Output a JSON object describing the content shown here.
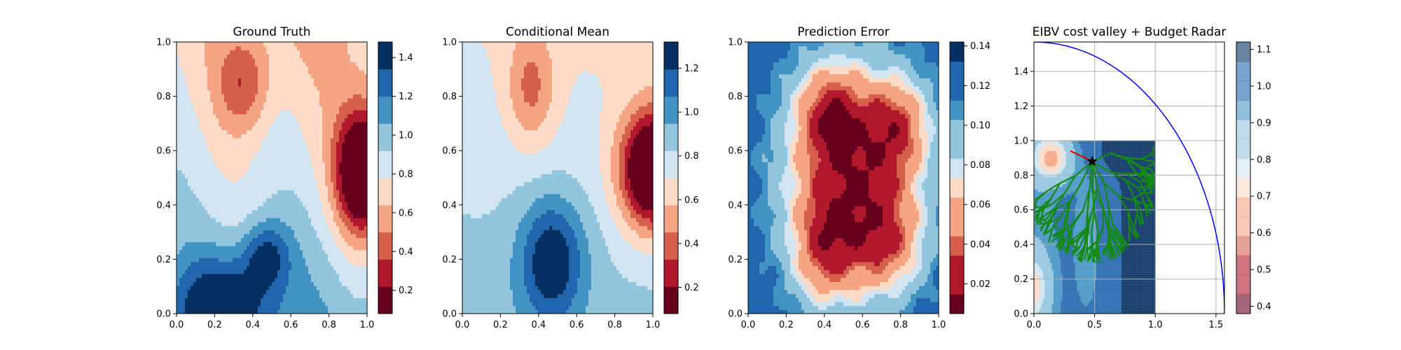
{
  "figure": {
    "panel_titles": [
      "Ground Truth",
      "Conditional Mean",
      "Prediction Error",
      "EIBV cost valley + Budget Radar"
    ]
  },
  "chart_data": [
    {
      "type": "heatmap",
      "title": "Ground Truth",
      "xlabel": "",
      "ylabel": "",
      "xlim": [
        0,
        1
      ],
      "ylim": [
        0,
        1
      ],
      "xticks": [
        "0.0",
        "0.2",
        "0.4",
        "0.6",
        "0.8",
        "1.0"
      ],
      "yticks": [
        "0.0",
        "0.2",
        "0.4",
        "0.6",
        "0.8",
        "1.0"
      ],
      "colormap": "RdBu",
      "colorbar": {
        "min": 0.08,
        "max": 1.48,
        "ticks": [
          "0.2",
          "0.4",
          "0.6",
          "0.8",
          "1.0",
          "1.2",
          "1.4"
        ]
      },
      "features": [
        {
          "kind": "low",
          "x": 0.97,
          "y": 0.52,
          "value": 0.1
        },
        {
          "kind": "high",
          "x": 0.22,
          "y": 0.02,
          "value": 1.45
        },
        {
          "kind": "high",
          "x": 0.45,
          "y": 0.22,
          "value": 1.45
        },
        {
          "kind": "mid-low",
          "x": 0.35,
          "y": 0.88,
          "value": 0.6
        }
      ]
    },
    {
      "type": "heatmap",
      "title": "Conditional Mean",
      "xlabel": "",
      "ylabel": "",
      "xlim": [
        0,
        1
      ],
      "ylim": [
        0,
        1
      ],
      "xticks": [
        "0.0",
        "0.2",
        "0.4",
        "0.6",
        "0.8",
        "1.0"
      ],
      "yticks": [
        "0.0",
        "0.2",
        "0.4",
        "0.6",
        "0.8",
        "1.0"
      ],
      "colormap": "RdBu",
      "colorbar": {
        "min": 0.08,
        "max": 1.32,
        "ticks": [
          "0.2",
          "0.4",
          "0.6",
          "0.8",
          "1.0",
          "1.2"
        ]
      },
      "features": [
        {
          "kind": "low",
          "x": 0.98,
          "y": 0.53,
          "value": 0.1
        },
        {
          "kind": "high",
          "x": 0.47,
          "y": 0.2,
          "value": 1.3
        },
        {
          "kind": "mid-low",
          "x": 0.36,
          "y": 0.83,
          "value": 0.7
        }
      ]
    },
    {
      "type": "heatmap",
      "title": "Prediction Error",
      "xlabel": "",
      "ylabel": "",
      "xlim": [
        0,
        1
      ],
      "ylim": [
        0,
        1
      ],
      "xticks": [
        "0.0",
        "0.2",
        "0.4",
        "0.6",
        "0.8",
        "1.0"
      ],
      "yticks": [
        "0.0",
        "0.2",
        "0.4",
        "0.6",
        "0.8",
        "1.0"
      ],
      "colormap": "RdBu",
      "colorbar": {
        "min": 0.005,
        "max": 0.142,
        "ticks": [
          "0.02",
          "0.04",
          "0.06",
          "0.08",
          "0.10",
          "0.12",
          "0.14"
        ]
      },
      "features": [
        {
          "kind": "low-region",
          "x": 0.55,
          "y": 0.5,
          "value": 0.015
        },
        {
          "kind": "high-corners",
          "x": 0.0,
          "y": 0.0,
          "value": 0.14
        }
      ]
    },
    {
      "type": "heatmap",
      "title": "EIBV cost valley + Budget Radar",
      "xlabel": "",
      "ylabel": "",
      "xlim": [
        0,
        1.57
      ],
      "ylim": [
        0,
        1.57
      ],
      "xticks": [
        "0.0",
        "0.5",
        "1.0",
        "1.5"
      ],
      "yticks": [
        "0.0",
        "0.2",
        "0.4",
        "0.6",
        "0.8",
        "1.0",
        "1.2",
        "1.4"
      ],
      "grid": true,
      "colormap": "RdBu",
      "colorbar": {
        "min": 0.38,
        "max": 1.12,
        "ticks": [
          "0.4",
          "0.5",
          "0.6",
          "0.7",
          "0.8",
          "0.9",
          "1.0",
          "1.1"
        ]
      },
      "budget_radius": 1.57,
      "current_location": [
        0.48,
        0.88
      ],
      "colors": {
        "tree": "#138a13",
        "budget_radar": "#0000ff",
        "path": "#e00000",
        "location_marker": "#000000"
      }
    }
  ]
}
